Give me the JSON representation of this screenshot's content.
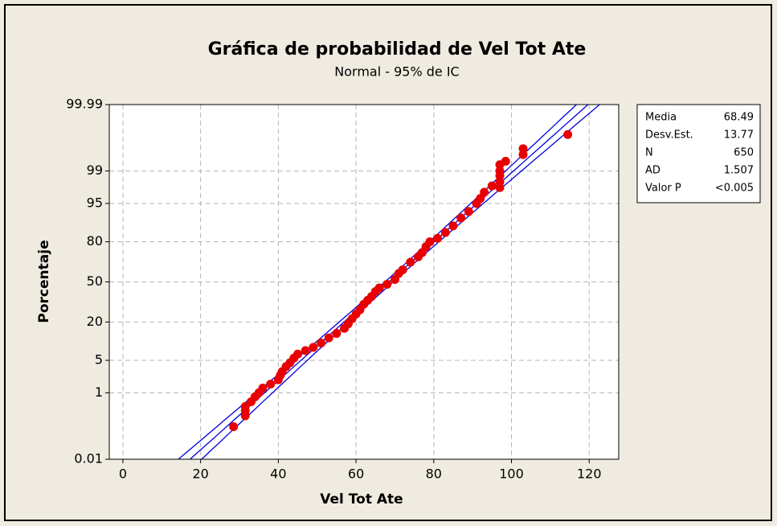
{
  "chart_data": {
    "type": "probability",
    "title": "Gráfica de probabilidad de Vel Tot Ate",
    "subtitle": "Normal - 95% de IC",
    "x_label": "Vel Tot Ate",
    "y_label": "Porcentaje",
    "xlim": [
      -3.5,
      127.6
    ],
    "xticks": [
      0,
      20,
      40,
      60,
      80,
      100,
      120
    ],
    "ylim": [
      0.01,
      99.99
    ],
    "yticks": [
      0.01,
      1,
      5,
      20,
      50,
      80,
      95,
      99,
      99.99
    ],
    "grid": true,
    "point_color": "#e80000",
    "line_color": "#0000e0",
    "x": [
      28.5,
      31.5,
      31.5,
      31.5,
      33,
      34,
      35,
      36,
      38,
      40,
      40.5,
      41,
      42,
      43,
      44,
      45,
      47,
      49,
      51,
      53,
      55,
      57,
      58,
      59,
      60,
      61,
      62,
      63,
      64,
      65,
      66,
      68,
      70,
      71,
      72,
      74,
      76,
      77,
      78,
      79,
      81,
      83,
      85,
      87,
      89,
      91,
      92,
      93,
      95,
      97,
      97,
      97,
      97,
      97,
      98.5,
      103,
      103,
      114.5
    ],
    "y": [
      0.12,
      0.25,
      0.35,
      0.45,
      0.6,
      0.8,
      1.0,
      1.3,
      1.6,
      2.0,
      2.5,
      3,
      3.8,
      4.5,
      5.5,
      6.5,
      7.5,
      8.5,
      10,
      12,
      14,
      16.5,
      19,
      22,
      25,
      28,
      32,
      35,
      38,
      42,
      45,
      48,
      52,
      57,
      60,
      66,
      70,
      73,
      77,
      80,
      82,
      85,
      88,
      91,
      93,
      95,
      96,
      97,
      97.8,
      97.6,
      98.2,
      98.7,
      99.0,
      99.3,
      99.43,
      99.62,
      99.74,
      99.9
    ],
    "stats": [
      {
        "label": "Media",
        "value": 68.49
      },
      {
        "label": "Desv.Est.",
        "value": 13.77
      },
      {
        "label": "N",
        "value": 650
      },
      {
        "label": "AD",
        "value": 1.507
      },
      {
        "label": "Valor P",
        "value": "<0.005"
      }
    ]
  }
}
